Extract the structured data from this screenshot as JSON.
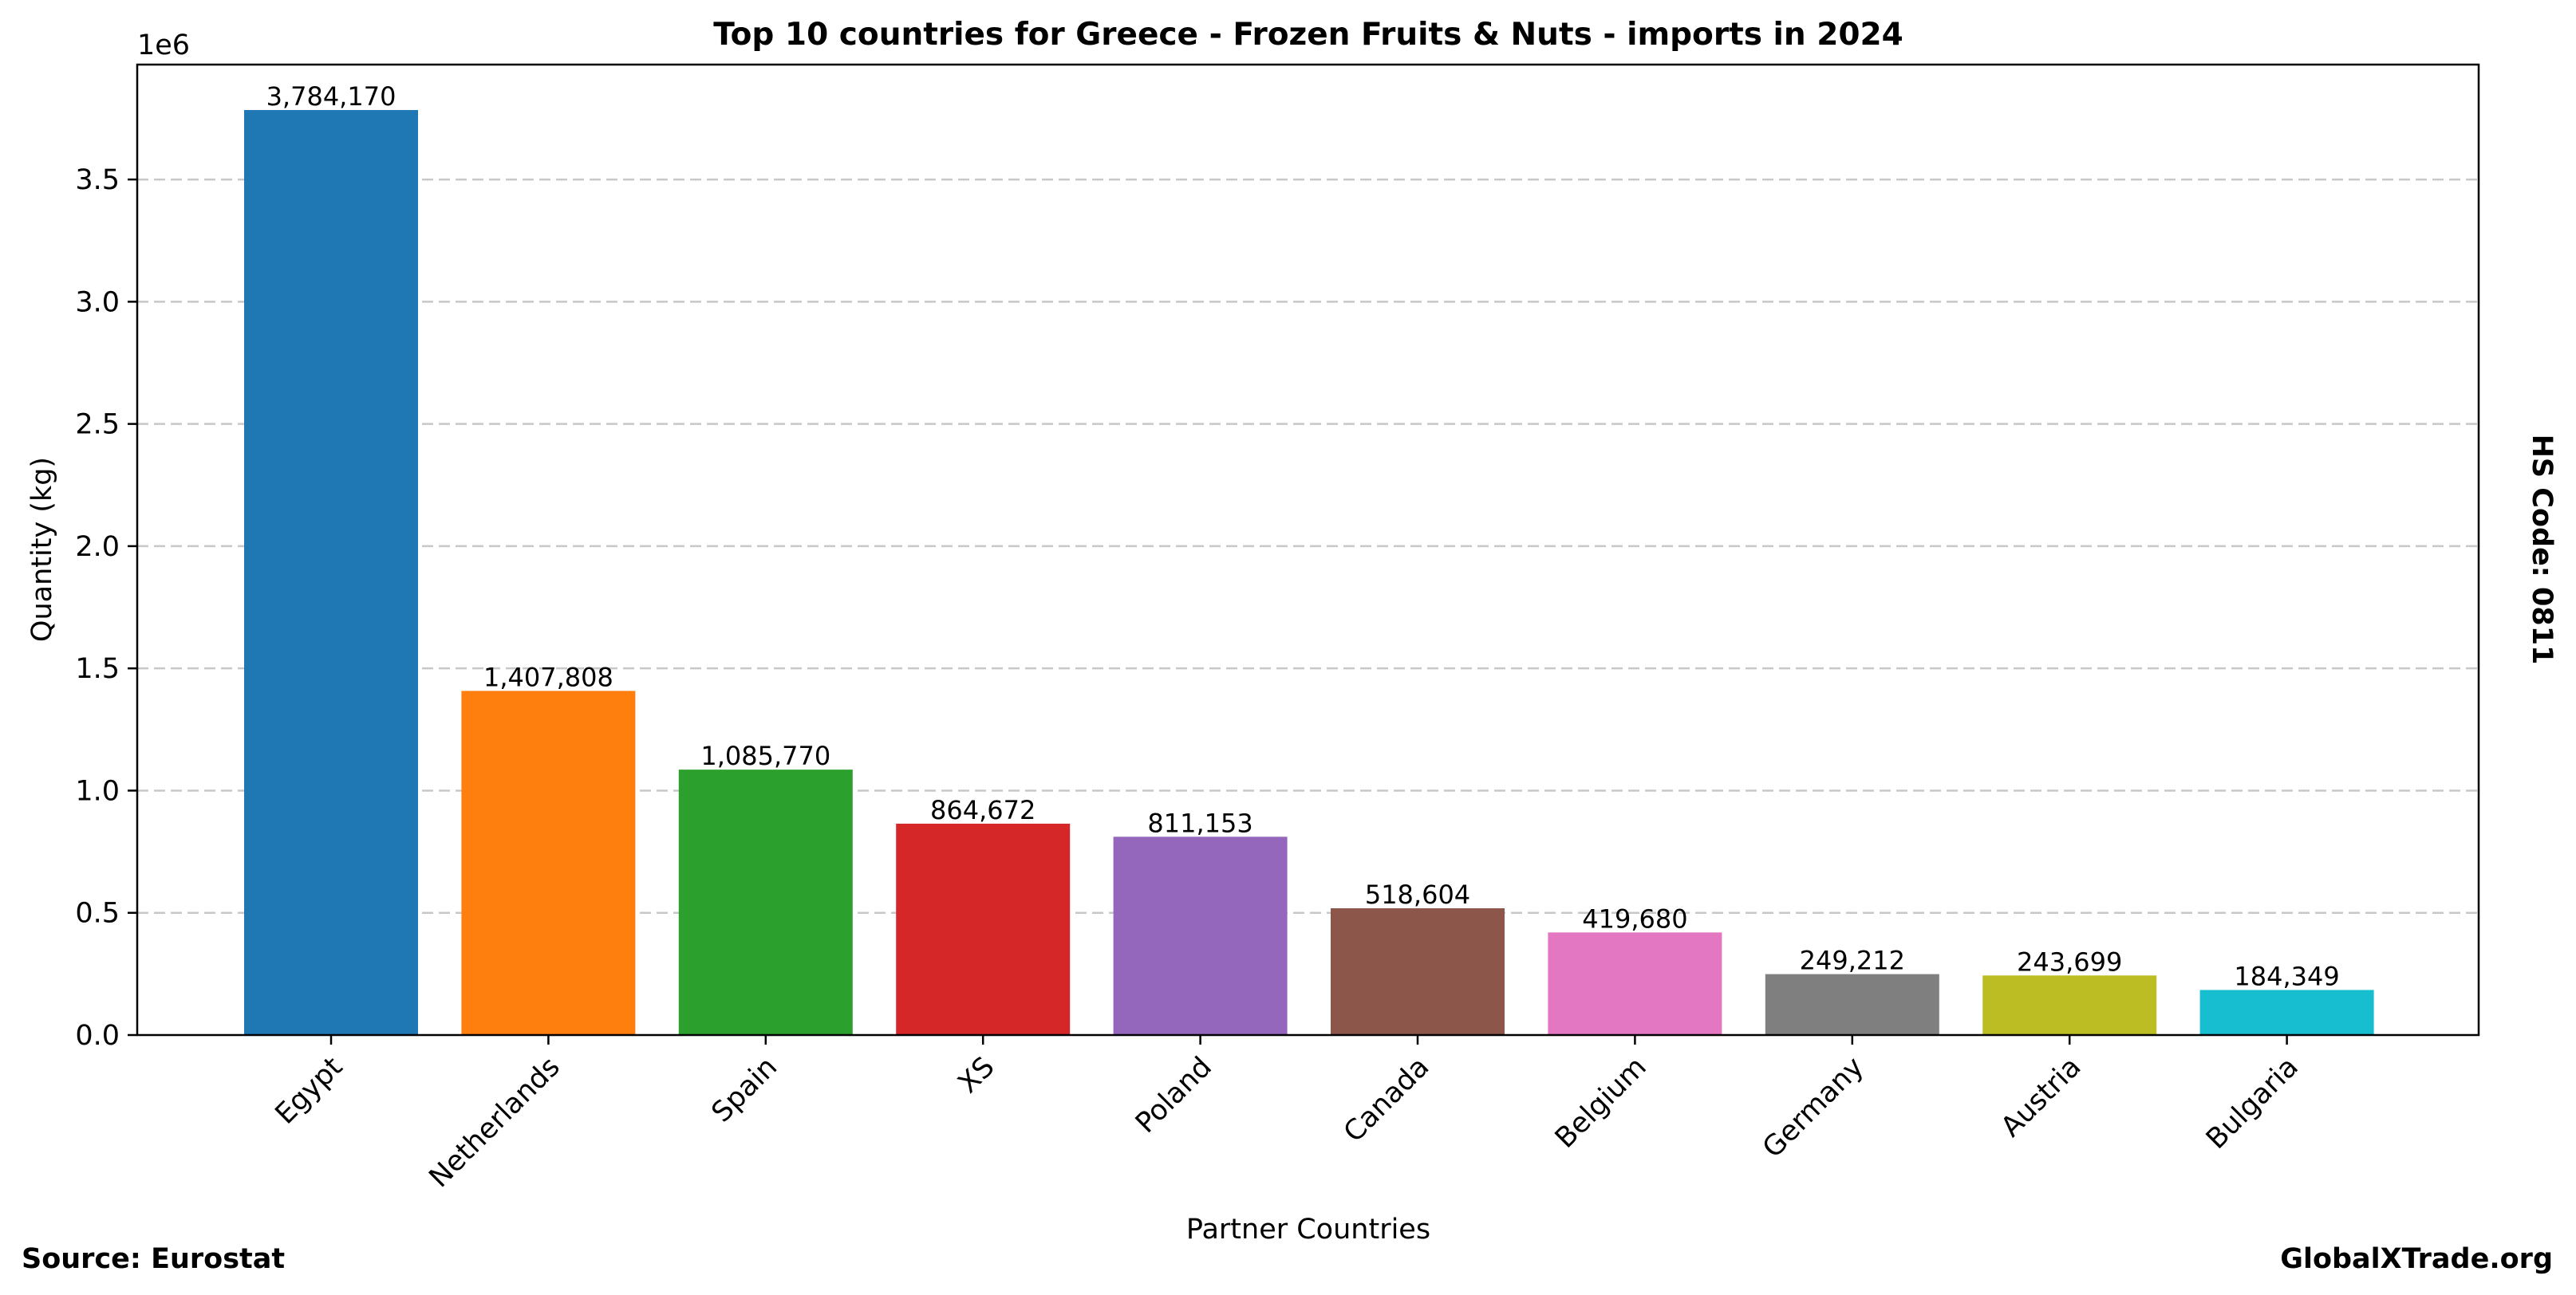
{
  "chart_data": {
    "type": "bar",
    "title": "Top 10 countries for Greece - Frozen Fruits & Nuts - imports in 2024",
    "xlabel": "Partner Countries",
    "ylabel": "Quantity (kg)",
    "y_scale_label": "1e6",
    "ylim": [
      0,
      3.97
    ],
    "y_ticks": [
      0.0,
      0.5,
      1.0,
      1.5,
      2.0,
      2.5,
      3.0,
      3.5
    ],
    "y_tick_labels": [
      "0.0",
      "0.5",
      "1.0",
      "1.5",
      "2.0",
      "2.5",
      "3.0",
      "3.5"
    ],
    "grid": "horizontal dashed",
    "categories": [
      "Egypt",
      "Netherlands",
      "Spain",
      "XS",
      "Poland",
      "Canada",
      "Belgium",
      "Germany",
      "Austria",
      "Bulgaria"
    ],
    "values": [
      3784170,
      1407808,
      1085770,
      864672,
      811153,
      518604,
      419680,
      249212,
      243699,
      184349
    ],
    "value_labels": [
      "3,784,170",
      "1,407,808",
      "1,085,770",
      "864,672",
      "811,153",
      "518,604",
      "419,680",
      "249,212",
      "243,699",
      "184,349"
    ],
    "colors": [
      "#1f77b4",
      "#ff7f0e",
      "#2ca02c",
      "#d62728",
      "#9467bd",
      "#8c564b",
      "#e377c2",
      "#7f7f7f",
      "#bcbd22",
      "#17becf"
    ],
    "side_annotation": "HS Code: 0811"
  },
  "footer": {
    "source": "Source: Eurostat",
    "brand": "GlobalXTrade.org"
  }
}
